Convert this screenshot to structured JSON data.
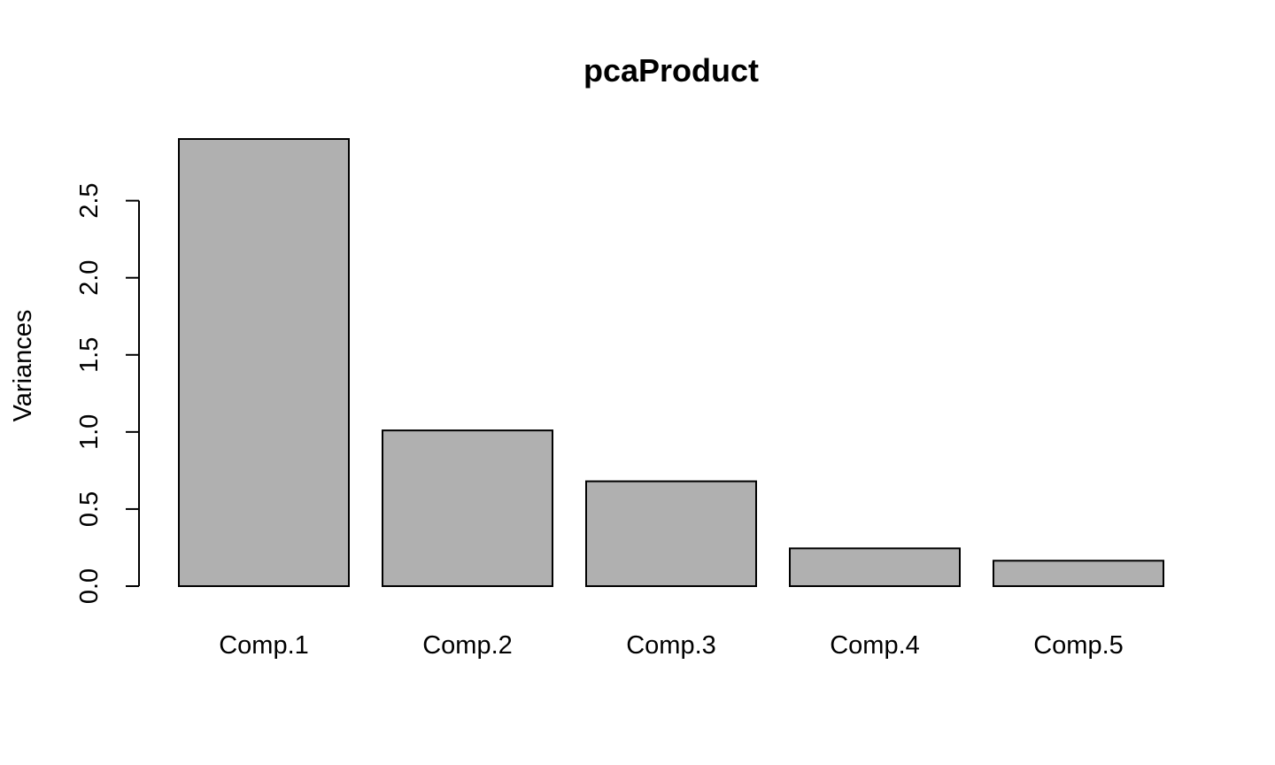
{
  "chart_data": {
    "type": "bar",
    "title": "pcaProduct",
    "xlabel": "",
    "ylabel": "Variances",
    "categories": [
      "Comp.1",
      "Comp.2",
      "Comp.3",
      "Comp.4",
      "Comp.5"
    ],
    "values": [
      2.9,
      1.01,
      0.68,
      0.245,
      0.165
    ],
    "ylim": [
      0,
      2.9
    ],
    "yticks": [
      0.0,
      0.5,
      1.0,
      1.5,
      2.0,
      2.5
    ],
    "ytick_labels": [
      "0.0",
      "0.5",
      "1.0",
      "1.5",
      "2.0",
      "2.5"
    ],
    "bar_color": "#b0b0b0",
    "grid": false,
    "legend": "none"
  }
}
